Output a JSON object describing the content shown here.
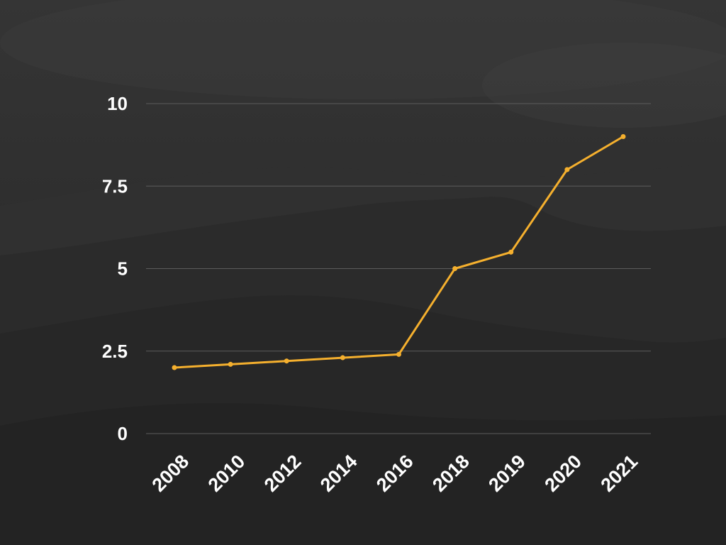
{
  "colors": {
    "background_top": "#353535",
    "background_bottom": "#242424",
    "gridline": "#5c5c5c",
    "series_line": "#f5b02e",
    "text": "#ffffff"
  },
  "chart_data": {
    "type": "line",
    "title": "",
    "xlabel": "",
    "ylabel": "",
    "categories": [
      "2008",
      "2010",
      "2012",
      "2014",
      "2016",
      "2018",
      "2019",
      "2020",
      "2021"
    ],
    "series": [
      {
        "values": [
          2.0,
          2.1,
          2.2,
          2.3,
          2.4,
          5.0,
          5.5,
          8.0,
          9.0
        ]
      }
    ],
    "ylim": [
      0,
      10
    ],
    "y_ticks": [
      "0",
      "2.5",
      "5",
      "7.5",
      "10"
    ],
    "grid": true,
    "legend": "none",
    "background": "dark mountain landscape photo"
  }
}
